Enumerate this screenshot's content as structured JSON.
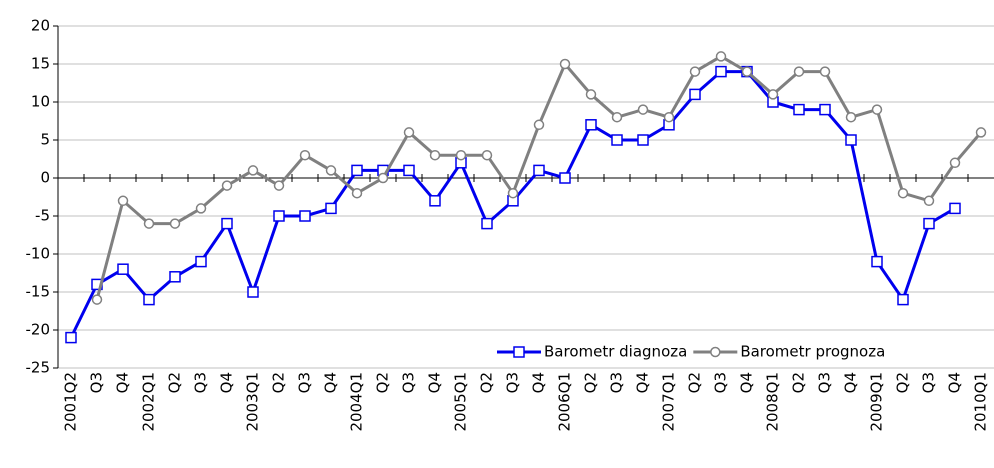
{
  "chart_data": {
    "type": "line",
    "categories": [
      "2001Q2",
      "Q3",
      "Q4",
      "2002Q1",
      "Q2",
      "Q3",
      "Q4",
      "2003Q1",
      "Q2",
      "Q3",
      "Q4",
      "2004Q1",
      "Q2",
      "Q3",
      "Q4",
      "2005Q1",
      "Q2",
      "Q3",
      "Q4",
      "2006Q1",
      "Q2",
      "Q3",
      "Q4",
      "2007Q1",
      "Q2",
      "Q3",
      "Q4",
      "2008Q1",
      "Q2",
      "Q3",
      "Q4",
      "2009Q1",
      "Q2",
      "Q3",
      "Q4",
      "2010Q1"
    ],
    "series": [
      {
        "name": "Barometr diagnoza",
        "color": "#0000ee",
        "marker": "square",
        "values": [
          -21,
          -14,
          -12,
          -16,
          -13,
          -11,
          -6,
          -15,
          -5,
          -5,
          -4,
          1,
          1,
          1,
          -3,
          2,
          -6,
          -3,
          1,
          0,
          7,
          5,
          5,
          7,
          11,
          14,
          14,
          10,
          9,
          9,
          5,
          -11,
          -16,
          -6,
          -4,
          null
        ]
      },
      {
        "name": "Barometr prognoza",
        "color": "#808080",
        "marker": "circle",
        "values": [
          null,
          -16,
          -3,
          -6,
          -6,
          -4,
          -1,
          1,
          -1,
          3,
          1,
          -2,
          0,
          6,
          3,
          3,
          3,
          -2,
          7,
          15,
          11,
          8,
          9,
          8,
          14,
          16,
          14,
          11,
          14,
          14,
          8,
          9,
          -2,
          -3,
          2,
          6
        ]
      }
    ],
    "ylim": [
      -25,
      20
    ],
    "yticks": [
      -25,
      -20,
      -15,
      -10,
      -5,
      0,
      5,
      10,
      15,
      20
    ],
    "grid": true,
    "legend": "bottom-right"
  }
}
